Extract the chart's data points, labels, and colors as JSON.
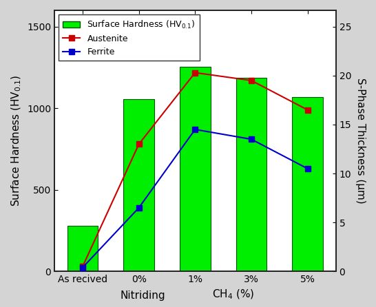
{
  "categories": [
    "As recived",
    "0%",
    "1%",
    "3%",
    "5%"
  ],
  "bar_values": [
    280,
    1055,
    1255,
    1185,
    1070
  ],
  "bar_color": "#00EE00",
  "bar_edgecolor": "#005500",
  "austenite_thickness": [
    0.5,
    13.0,
    20.3,
    19.5,
    16.5
  ],
  "ferrite_thickness": [
    0.4,
    6.5,
    14.5,
    13.5,
    10.5
  ],
  "austenite_color": "#CC0000",
  "ferrite_color": "#0000CC",
  "ylabel_left": "Surface Hardness (HV$_{0.1}$)",
  "ylabel_right": "S-Phase Thickness (μm)",
  "xlabel_nitriding": "Nitriding",
  "xlabel_ch4": "CH$_4$ (%)",
  "ylim_left": [
    0,
    1600
  ],
  "ylim_right": [
    0,
    26.667
  ],
  "yticks_left": [
    0,
    500,
    1000,
    1500
  ],
  "yticks_right": [
    0,
    5,
    10,
    15,
    20,
    25
  ],
  "legend_surface": "Surface Hardness (HV$_{0.1}$)",
  "legend_austenite": "Austenite",
  "legend_ferrite": "Ferrite",
  "plot_bg": "#ffffff",
  "fig_bg": "#d4d4d4",
  "spine_color": "#222222",
  "tick_label_fontsize": 10,
  "axis_label_fontsize": 11,
  "legend_fontsize": 9
}
